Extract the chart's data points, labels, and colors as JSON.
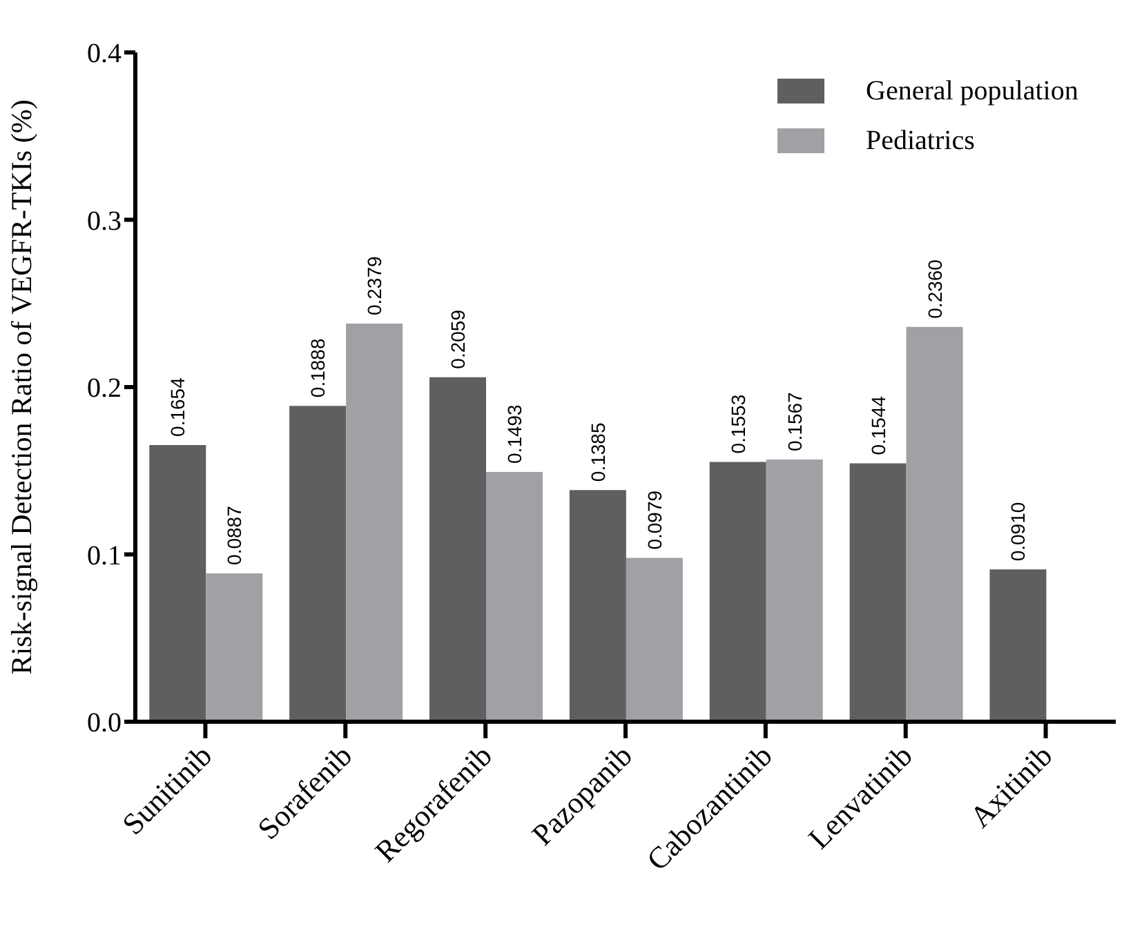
{
  "chart_data": {
    "type": "bar",
    "ylabel": "Risk-signal Detection Ratio of VEGFR-TKIs (%)",
    "categories": [
      "Sunitinib",
      "Sorafenib",
      "Regorafenib",
      "Pazopanib",
      "Cabozantinib",
      "Lenvatinib",
      "Axitinib"
    ],
    "series": [
      {
        "name": "General population",
        "color": "#5f5f5f",
        "values": [
          0.1654,
          0.1888,
          0.2059,
          0.1385,
          0.1553,
          0.1544,
          0.091
        ],
        "value_labels": [
          "0.1654",
          "0.1888",
          "0.2059",
          "0.1385",
          "0.1553",
          "0.1544",
          "0.0910"
        ]
      },
      {
        "name": "Pediatrics",
        "color": "#a0a0a5",
        "values": [
          0.0887,
          0.2379,
          0.1493,
          0.0979,
          0.1567,
          0.236,
          null
        ],
        "value_labels": [
          "0.0887",
          "0.2379",
          "0.1493",
          "0.0979",
          "0.1567",
          "0.2360",
          null
        ]
      }
    ],
    "ylim": [
      0,
      0.4
    ],
    "yticks": [
      {
        "value": 0,
        "label": "0.0"
      },
      {
        "value": 0.1,
        "label": "0.1"
      },
      {
        "value": 0.2,
        "label": "0.2"
      },
      {
        "value": 0.3,
        "label": "0.3"
      },
      {
        "value": 0.4,
        "label": "0.4"
      }
    ],
    "grid": false,
    "legend": "top right"
  }
}
